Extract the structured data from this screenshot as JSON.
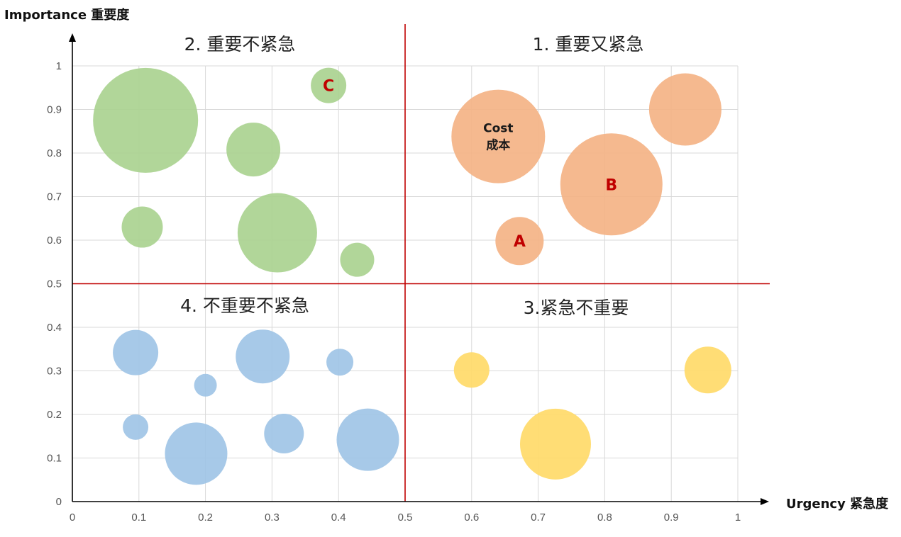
{
  "chart_data": {
    "type": "bubble",
    "title": "",
    "xlabel": "Urgency 紧急度",
    "ylabel": "Importance 重要度",
    "xlim": [
      0,
      1
    ],
    "ylim": [
      0,
      1
    ],
    "x_ticks": [
      "0",
      "0.1",
      "0.2",
      "0.3",
      "0.4",
      "0.5",
      "0.6",
      "0.7",
      "0.8",
      "0.9",
      "1"
    ],
    "y_ticks": [
      "0",
      "0.1",
      "0.2",
      "0.3",
      "0.4",
      "0.5",
      "0.6",
      "0.7",
      "0.8",
      "0.9",
      "1"
    ],
    "grid": true,
    "dividers": {
      "x": 0.5,
      "y": 0.5,
      "color": "#c00000"
    },
    "quadrant_labels": [
      {
        "text": "2. 重要不紧急",
        "quadrant": "top-left"
      },
      {
        "text": "1. 重要又紧急",
        "quadrant": "top-right"
      },
      {
        "text": "4. 不重要不紧急",
        "quadrant": "bottom-left"
      },
      {
        "text": "3.紧急不重要",
        "quadrant": "bottom-right"
      }
    ],
    "series": [
      {
        "color": "#a9d18e",
        "points": [
          {
            "x": 0.11,
            "y": 0.875,
            "size": 74,
            "label": ""
          },
          {
            "x": 0.272,
            "y": 0.808,
            "size": 38,
            "label": ""
          },
          {
            "x": 0.385,
            "y": 0.955,
            "size": 25,
            "label": "C"
          },
          {
            "x": 0.105,
            "y": 0.63,
            "size": 29,
            "label": ""
          },
          {
            "x": 0.308,
            "y": 0.617,
            "size": 56,
            "label": ""
          },
          {
            "x": 0.428,
            "y": 0.555,
            "size": 24,
            "label": ""
          }
        ]
      },
      {
        "color": "#f4b183",
        "points": [
          {
            "x": 0.64,
            "y": 0.838,
            "size": 66,
            "label": "Cost\n成本"
          },
          {
            "x": 0.921,
            "y": 0.9,
            "size": 51,
            "label": ""
          },
          {
            "x": 0.81,
            "y": 0.728,
            "size": 72,
            "label": "B"
          },
          {
            "x": 0.672,
            "y": 0.598,
            "size": 34,
            "label": "A"
          }
        ]
      },
      {
        "color": "#9dc3e6",
        "points": [
          {
            "x": 0.095,
            "y": 0.342,
            "size": 32,
            "label": ""
          },
          {
            "x": 0.2,
            "y": 0.267,
            "size": 16,
            "label": ""
          },
          {
            "x": 0.286,
            "y": 0.333,
            "size": 38,
            "label": ""
          },
          {
            "x": 0.402,
            "y": 0.32,
            "size": 19,
            "label": ""
          },
          {
            "x": 0.095,
            "y": 0.171,
            "size": 18,
            "label": ""
          },
          {
            "x": 0.186,
            "y": 0.11,
            "size": 44,
            "label": ""
          },
          {
            "x": 0.318,
            "y": 0.156,
            "size": 28,
            "label": ""
          },
          {
            "x": 0.444,
            "y": 0.142,
            "size": 44,
            "label": ""
          }
        ]
      },
      {
        "color": "#ffd966",
        "points": [
          {
            "x": 0.6,
            "y": 0.302,
            "size": 25,
            "label": ""
          },
          {
            "x": 0.955,
            "y": 0.302,
            "size": 33,
            "label": ""
          },
          {
            "x": 0.726,
            "y": 0.132,
            "size": 50,
            "label": ""
          }
        ]
      }
    ]
  }
}
